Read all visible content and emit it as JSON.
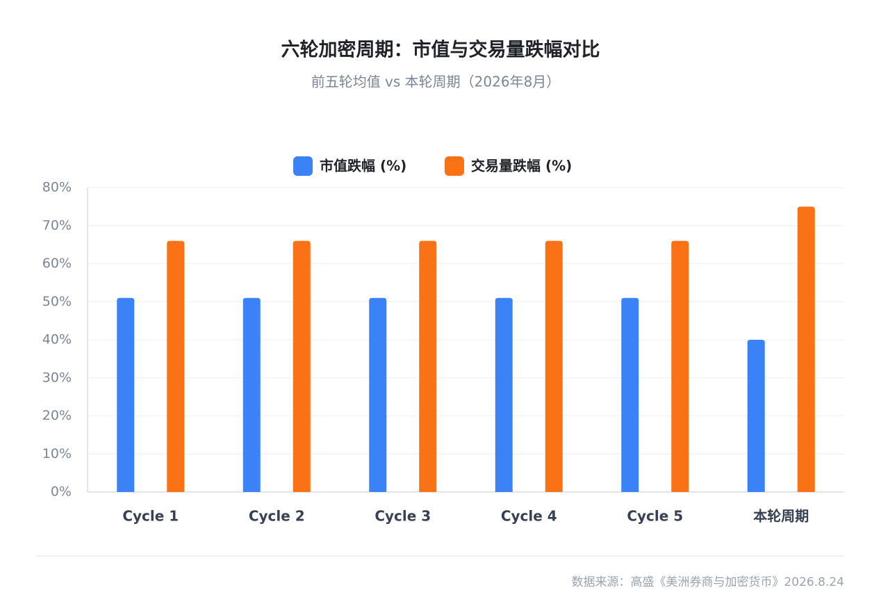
{
  "chart_data": {
    "type": "bar",
    "title": "六轮加密周期：市值与交易量跌幅对比",
    "subtitle": "前五轮均值 vs 本轮周期（2026年8月）",
    "categories": [
      "Cycle 1",
      "Cycle 2",
      "Cycle 3",
      "Cycle 4",
      "Cycle 5",
      "本轮周期"
    ],
    "series": [
      {
        "name": "市值跌幅 (%)",
        "color": "#3b82f6",
        "values": [
          51,
          51,
          51,
          51,
          51,
          40
        ]
      },
      {
        "name": "交易量跌幅 (%)",
        "color": "#f97316",
        "values": [
          66,
          66,
          66,
          66,
          66,
          75
        ]
      }
    ],
    "ylim": [
      0,
      80
    ],
    "yticks": [
      {
        "value": 0,
        "label": "0%"
      },
      {
        "value": 10,
        "label": "10%"
      },
      {
        "value": 20,
        "label": "20%"
      },
      {
        "value": 30,
        "label": "30%"
      },
      {
        "value": 40,
        "label": "40%"
      },
      {
        "value": 50,
        "label": "50%"
      },
      {
        "value": 60,
        "label": "60%"
      },
      {
        "value": 70,
        "label": "70%"
      },
      {
        "value": 80,
        "label": "80%"
      }
    ],
    "grid": true,
    "legend": "top",
    "source": "数据来源：高盛《美洲券商与加密货币》2026.8.24"
  }
}
